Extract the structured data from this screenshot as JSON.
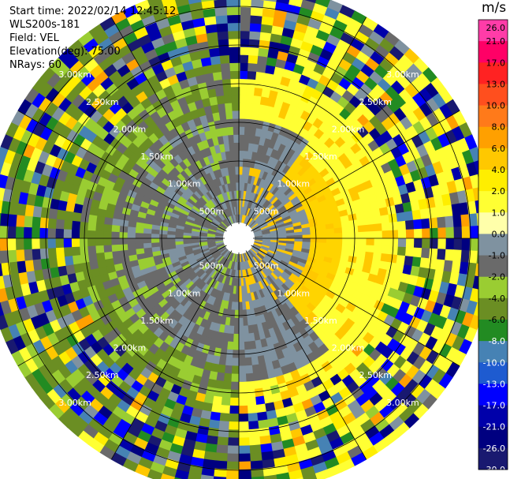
{
  "info": {
    "start_time": "Start time: 2022/02/14 12:45:12",
    "instrument": "WLS200s-181",
    "field": "Field: VEL",
    "elevation": "Elevation(deg): 75.00",
    "nrays": "NRays: 60"
  },
  "colorbar": {
    "unit": "m/s",
    "ticks": [
      "26.0",
      "21.0",
      "17.0",
      "13.0",
      "10.0",
      "8.0",
      "6.0",
      "4.0",
      "2.0",
      "1.0",
      "0.0",
      "-1.0",
      "-2.0",
      "-4.0",
      "-6.0",
      "-8.0",
      "-10.0",
      "-13.0",
      "-17.0",
      "-21.0",
      "-26.0",
      "-30.0"
    ],
    "colors": [
      "#ff3ca8",
      "#ff0066",
      "#ff2222",
      "#ff4f1e",
      "#ff7a1a",
      "#ffa000",
      "#ffc800",
      "#ffee00",
      "#ffff33",
      "#ffffaa",
      "#7f92a0",
      "#6a6a6a",
      "#9acd32",
      "#6b8e23",
      "#228b22",
      "#4682b4",
      "#1e5bd0",
      "#0000ff",
      "#0000aa",
      "#000080",
      "#191970"
    ]
  },
  "chart_data": {
    "type": "ppi",
    "field": "VEL",
    "nrays": 60,
    "elevation_deg": 75.0,
    "range_rings_km": [
      0.5,
      1.0,
      1.5,
      2.0,
      2.5,
      3.0
    ],
    "range_ring_labels": [
      "500m",
      "1.00km",
      "1.50km",
      "2.00km",
      "2.50km",
      "3.00km"
    ],
    "max_range_km": 3.3,
    "spokes_deg": [
      0,
      30,
      60,
      90,
      120,
      150,
      180,
      210,
      240,
      270,
      300,
      330
    ],
    "velocity_units": "m/s",
    "inner_pattern": "negative (grey/green) on west half, positive (yellow) on east half",
    "outer_pattern": "noisy multi-color beyond ~2.0 km"
  }
}
